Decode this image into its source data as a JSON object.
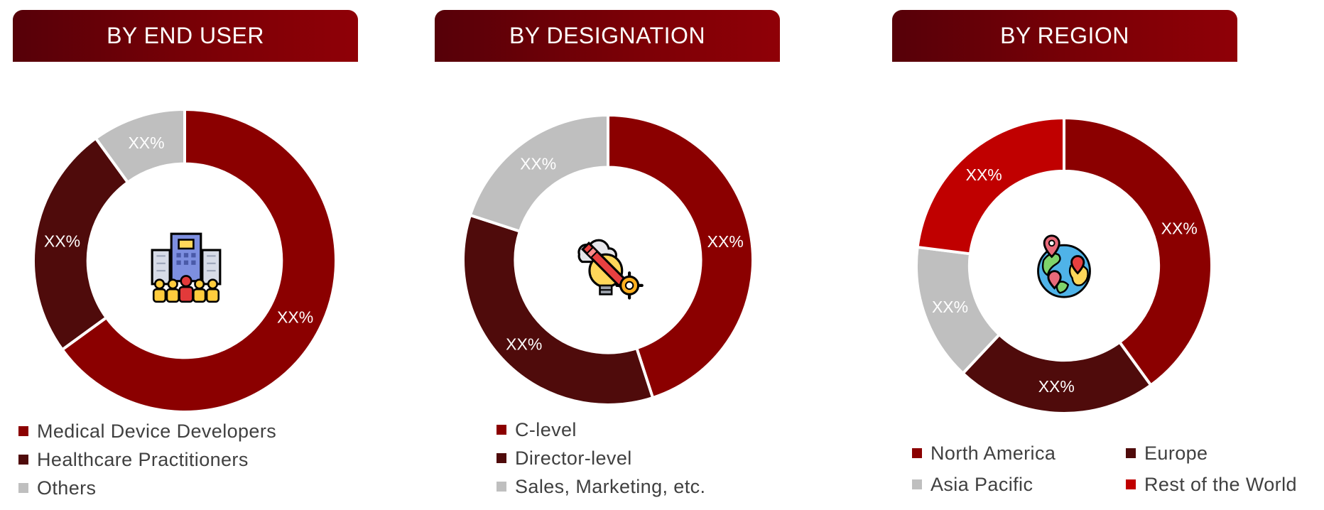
{
  "colors": {
    "dark_red": "#8b0000",
    "maroon": "#4f0b0b",
    "gray": "#bfbfbf",
    "bright_red": "#c00000",
    "header": "#7a0008"
  },
  "chart_data": [
    {
      "type": "pie",
      "title": "BY END USER",
      "icon": "hospital-people-icon",
      "slices": [
        {
          "label": "Medical Device Developers",
          "value": 65,
          "data_label": "XX%",
          "color": "#8b0000"
        },
        {
          "label": "Healthcare Practitioners",
          "value": 25,
          "data_label": "XX%",
          "color": "#4f0b0b"
        },
        {
          "label": "Others",
          "value": 10,
          "data_label": "XX%",
          "color": "#bfbfbf"
        }
      ],
      "legend": [
        "Medical Device Developers",
        "Healthcare Practitioners",
        "Others"
      ]
    },
    {
      "type": "pie",
      "title": "BY DESIGNATION",
      "icon": "idea-pencil-gear-icon",
      "slices": [
        {
          "label": "C-level",
          "value": 45,
          "data_label": "XX%",
          "color": "#8b0000"
        },
        {
          "label": "Director-level",
          "value": 35,
          "data_label": "XX%",
          "color": "#4f0b0b"
        },
        {
          "label": "Sales, Marketing, etc.",
          "value": 20,
          "data_label": "XX%",
          "color": "#bfbfbf"
        }
      ],
      "legend": [
        "C-level",
        "Director-level",
        "Sales, Marketing, etc."
      ]
    },
    {
      "type": "pie",
      "title": "BY REGION",
      "icon": "globe-location-icon",
      "slices": [
        {
          "label": "North America",
          "value": 40,
          "data_label": "XX%",
          "color": "#8b0000"
        },
        {
          "label": "Europe",
          "value": 22,
          "data_label": "XX%",
          "color": "#4f0b0b"
        },
        {
          "label": "Asia Pacific",
          "value": 15,
          "data_label": "XX%",
          "color": "#bfbfbf"
        },
        {
          "label": "Rest of the World",
          "value": 23,
          "data_label": "XX%",
          "color": "#c00000"
        }
      ],
      "legend": [
        "North America",
        "Europe",
        "Asia Pacific",
        "Rest of the World"
      ]
    }
  ]
}
